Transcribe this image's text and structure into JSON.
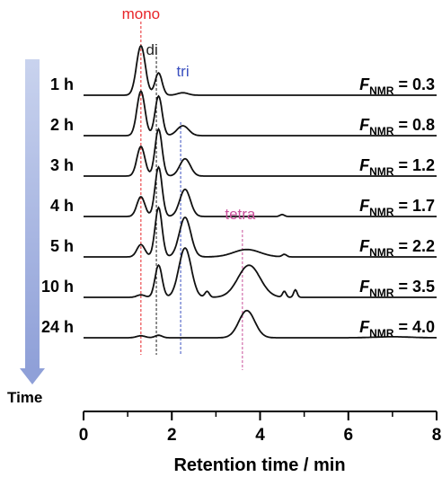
{
  "chart_data": {
    "type": "line",
    "chart_style": "stacked chromatograms (offset traces)",
    "xlabel": "Retention time / min",
    "xlim": [
      0,
      8
    ],
    "x_ticks": [
      "0",
      "2",
      "4",
      "6",
      "8"
    ],
    "time_axis_label": "Time",
    "ratio_label": {
      "main": "F",
      "sub": "NMR"
    },
    "peak_labels": [
      {
        "name": "mono",
        "x": 1.3,
        "color": "#e8262a"
      },
      {
        "name": "di",
        "x": 1.65,
        "color": "#222222"
      },
      {
        "name": "tri",
        "x": 2.2,
        "color": "#3a4fbf"
      },
      {
        "name": "tetra",
        "x": 3.6,
        "color": "#c8509a"
      }
    ],
    "series": [
      {
        "name": "1 h",
        "fnmr": "0.3",
        "peaks": [
          [
            1.3,
            1.0,
            0.1
          ],
          [
            1.7,
            0.45,
            0.08
          ],
          [
            2.25,
            0.05,
            0.12
          ]
        ]
      },
      {
        "name": "2 h",
        "fnmr": "0.8",
        "peaks": [
          [
            1.3,
            0.9,
            0.09
          ],
          [
            1.7,
            0.8,
            0.08
          ],
          [
            2.25,
            0.2,
            0.13
          ]
        ]
      },
      {
        "name": "3 h",
        "fnmr": "1.2",
        "peaks": [
          [
            1.3,
            0.6,
            0.09
          ],
          [
            1.7,
            0.95,
            0.08
          ],
          [
            2.3,
            0.35,
            0.12
          ]
        ]
      },
      {
        "name": "4 h",
        "fnmr": "1.7",
        "peaks": [
          [
            1.3,
            0.4,
            0.09
          ],
          [
            1.7,
            1.0,
            0.08
          ],
          [
            2.3,
            0.55,
            0.12
          ],
          [
            4.5,
            0.04,
            0.05
          ]
        ]
      },
      {
        "name": "5 h",
        "fnmr": "2.2",
        "peaks": [
          [
            1.3,
            0.25,
            0.09
          ],
          [
            1.7,
            1.0,
            0.08
          ],
          [
            2.3,
            0.8,
            0.13
          ],
          [
            3.7,
            0.15,
            0.3
          ],
          [
            4.55,
            0.05,
            0.05
          ]
        ]
      },
      {
        "name": "10 h",
        "fnmr": "3.5",
        "peaks": [
          [
            1.3,
            0.05,
            0.09
          ],
          [
            1.7,
            0.65,
            0.08
          ],
          [
            2.3,
            1.0,
            0.14
          ],
          [
            2.8,
            0.12,
            0.05
          ],
          [
            3.75,
            0.65,
            0.25
          ],
          [
            4.55,
            0.12,
            0.04
          ],
          [
            4.8,
            0.15,
            0.04
          ]
        ]
      },
      {
        "name": "24 h",
        "fnmr": "4.0",
        "peaks": [
          [
            1.3,
            0.04,
            0.1
          ],
          [
            1.7,
            0.05,
            0.08
          ],
          [
            3.7,
            0.55,
            0.18
          ],
          [
            7.0,
            0.02,
            0.4
          ]
        ]
      }
    ],
    "colors": {
      "trace": "#111111",
      "arrow_top": "#c9d3ee",
      "arrow_bottom": "#8fa0d8"
    }
  }
}
